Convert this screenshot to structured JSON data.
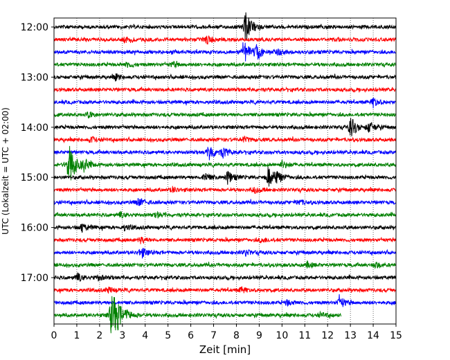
{
  "chart_data": {
    "type": "line",
    "title": "",
    "xlabel": "Zeit  [min]",
    "ylabel": "UTC (Lokalzeit = UTC + 02:00)",
    "xlim": [
      0,
      15
    ],
    "x_ticks": [
      0,
      1,
      2,
      3,
      4,
      5,
      6,
      7,
      8,
      9,
      10,
      11,
      12,
      13,
      14,
      15
    ],
    "y_tick_labels": [
      "12:00",
      "13:00",
      "14:00",
      "15:00",
      "16:00",
      "17:00"
    ],
    "trace_interval_minutes": 15,
    "grid": "vertical dotted lines at every minute",
    "colors_cycle": [
      "#000000",
      "#ff0000",
      "#0000ff",
      "#008000"
    ],
    "traces": [
      {
        "start": "12:00",
        "color": "#000000",
        "events": [
          [
            8.4,
            9
          ]
        ]
      },
      {
        "start": "12:15",
        "color": "#ff0000",
        "events": [
          [
            6.7,
            2.5
          ],
          [
            3.1,
            1.5
          ]
        ]
      },
      {
        "start": "12:30",
        "color": "#0000ff",
        "events": [
          [
            8.3,
            7
          ],
          [
            8.9,
            4
          ],
          [
            9.8,
            2
          ]
        ]
      },
      {
        "start": "12:45",
        "color": "#008000",
        "events": [
          [
            3.2,
            1.5
          ],
          [
            5.2,
            1.5
          ]
        ]
      },
      {
        "start": "13:00",
        "color": "#000000",
        "events": [
          [
            2.7,
            1.5
          ]
        ]
      },
      {
        "start": "13:15",
        "color": "#ff0000",
        "events": []
      },
      {
        "start": "13:30",
        "color": "#0000ff",
        "events": [
          [
            14.0,
            2.5
          ]
        ]
      },
      {
        "start": "13:45",
        "color": "#008000",
        "events": [
          [
            1.5,
            1.5
          ]
        ]
      },
      {
        "start": "14:00",
        "color": "#000000",
        "events": [
          [
            13.0,
            6
          ],
          [
            13.8,
            3
          ]
        ]
      },
      {
        "start": "14:15",
        "color": "#ff0000",
        "events": [
          [
            1.6,
            1.5
          ],
          [
            8.3,
            1.5
          ]
        ]
      },
      {
        "start": "14:30",
        "color": "#0000ff",
        "events": [
          [
            6.8,
            5
          ],
          [
            7.4,
            2.5
          ]
        ]
      },
      {
        "start": "14:45",
        "color": "#008000",
        "events": [
          [
            0.6,
            5
          ],
          [
            0.7,
            8
          ],
          [
            1.3,
            3
          ],
          [
            10.0,
            2
          ]
        ]
      },
      {
        "start": "15:00",
        "color": "#000000",
        "events": [
          [
            6.6,
            2.5
          ],
          [
            7.6,
            3.5
          ],
          [
            9.4,
            5.5
          ],
          [
            9.7,
            3
          ]
        ]
      },
      {
        "start": "15:15",
        "color": "#ff0000",
        "events": [
          [
            5.2,
            1.5
          ],
          [
            8.8,
            1.5
          ]
        ]
      },
      {
        "start": "15:30",
        "color": "#0000ff",
        "events": [
          [
            3.7,
            2.5
          ],
          [
            10.7,
            1.5
          ]
        ]
      },
      {
        "start": "15:45",
        "color": "#008000",
        "events": [
          [
            2.9,
            1.5
          ],
          [
            4.5,
            1.5
          ]
        ]
      },
      {
        "start": "16:00",
        "color": "#000000",
        "events": [
          [
            1.2,
            2.5
          ],
          [
            3.1,
            1.5
          ]
        ]
      },
      {
        "start": "16:15",
        "color": "#ff0000",
        "events": [
          [
            3.8,
            1.5
          ],
          [
            9.1,
            1.5
          ]
        ]
      },
      {
        "start": "16:30",
        "color": "#0000ff",
        "events": [
          [
            3.8,
            3
          ],
          [
            8.4,
            1.5
          ]
        ]
      },
      {
        "start": "16:45",
        "color": "#008000",
        "events": [
          [
            11.1,
            1.5
          ],
          [
            14.1,
            1.5
          ]
        ]
      },
      {
        "start": "17:00",
        "color": "#000000",
        "events": [
          [
            1.0,
            2.5
          ],
          [
            1.9,
            1.5
          ]
        ]
      },
      {
        "start": "17:15",
        "color": "#ff0000",
        "events": [
          [
            2.4,
            1.5
          ],
          [
            8.2,
            1.5
          ]
        ]
      },
      {
        "start": "17:30",
        "color": "#0000ff",
        "events": [
          [
            10.2,
            1.5
          ],
          [
            12.5,
            3.5
          ]
        ]
      },
      {
        "start": "17:45",
        "color": "#008000",
        "end_x": 12.6,
        "events": [
          [
            2.5,
            9
          ],
          [
            2.6,
            6
          ],
          [
            2.8,
            3
          ],
          [
            3.2,
            1.5
          ],
          [
            11.7,
            1.5
          ]
        ]
      }
    ]
  }
}
